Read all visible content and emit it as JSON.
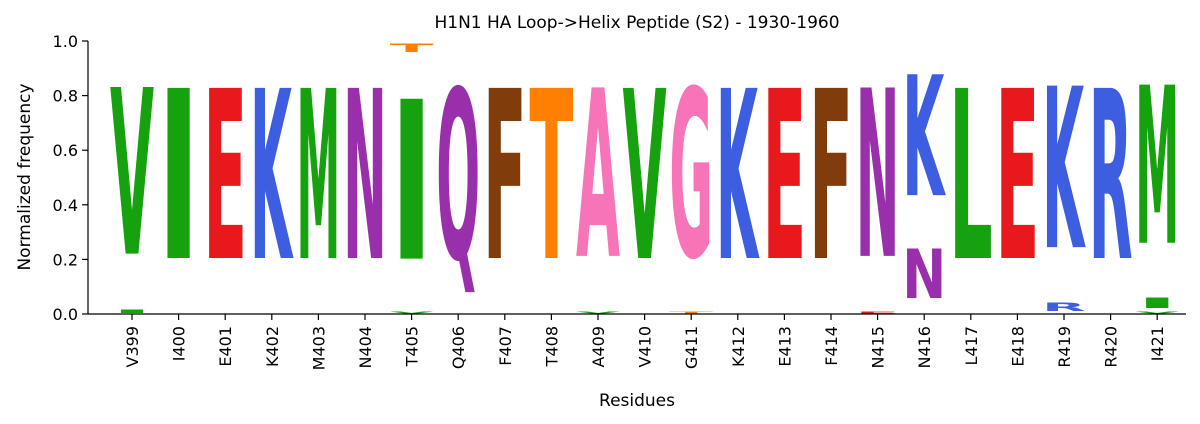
{
  "chart_data": {
    "type": "sequence-logo",
    "title": "H1N1 HA Loop->Helix Peptide (S2) - 1930-1960",
    "xlabel": "Residues",
    "ylabel": "Normalized frequency",
    "ylim": [
      0,
      1.0
    ],
    "yticks": [
      "0.0",
      "0.2",
      "0.4",
      "0.6",
      "0.8",
      "1.0"
    ],
    "ytick_values": [
      0,
      0.2,
      0.4,
      0.6,
      0.8,
      1.0
    ],
    "colors": {
      "V": "#16a10f",
      "I": "#16a10f",
      "L": "#16a10f",
      "M": "#16a10f",
      "E": "#e8191c",
      "K": "#3d5ee0",
      "R": "#3d5ee0",
      "N": "#9a2fac",
      "Q": "#9a2fac",
      "T": "#ff8000",
      "F": "#813c0b",
      "A": "#f774b8",
      "G": "#f774b8"
    },
    "positions": [
      {
        "label": "V399",
        "stack": [
          {
            "letter": "I",
            "freq": 0.02
          },
          {
            "letter": "V",
            "freq": 0.98
          }
        ]
      },
      {
        "label": "I400",
        "stack": [
          {
            "letter": "I",
            "freq": 1.0
          }
        ]
      },
      {
        "label": "E401",
        "stack": [
          {
            "letter": "E",
            "freq": 1.0
          }
        ]
      },
      {
        "label": "K402",
        "stack": [
          {
            "letter": "K",
            "freq": 1.0
          }
        ]
      },
      {
        "label": "M403",
        "stack": [
          {
            "letter": "M",
            "freq": 1.0
          }
        ]
      },
      {
        "label": "N404",
        "stack": [
          {
            "letter": "N",
            "freq": 1.0
          }
        ]
      },
      {
        "label": "T405",
        "stack": [
          {
            "letter": "V",
            "freq": 0.01
          },
          {
            "letter": "I",
            "freq": 0.94
          },
          {
            "letter": "T",
            "freq": 0.05
          }
        ]
      },
      {
        "label": "Q406",
        "stack": [
          {
            "letter": "Q",
            "freq": 1.0
          }
        ]
      },
      {
        "label": "F407",
        "stack": [
          {
            "letter": "F",
            "freq": 1.0
          }
        ]
      },
      {
        "label": "T408",
        "stack": [
          {
            "letter": "T",
            "freq": 1.0
          }
        ]
      },
      {
        "label": "A409",
        "stack": [
          {
            "letter": "V",
            "freq": 0.01
          },
          {
            "letter": "A",
            "freq": 0.99
          }
        ]
      },
      {
        "label": "V410",
        "stack": [
          {
            "letter": "V",
            "freq": 1.0
          }
        ]
      },
      {
        "label": "G411",
        "stack": [
          {
            "letter": "T",
            "freq": 0.01
          },
          {
            "letter": "G",
            "freq": 0.99
          }
        ]
      },
      {
        "label": "K412",
        "stack": [
          {
            "letter": "K",
            "freq": 1.0
          }
        ]
      },
      {
        "label": "E413",
        "stack": [
          {
            "letter": "E",
            "freq": 1.0
          }
        ]
      },
      {
        "label": "F414",
        "stack": [
          {
            "letter": "F",
            "freq": 1.0
          }
        ]
      },
      {
        "label": "N415",
        "stack": [
          {
            "letter": "E",
            "freq": 0.01
          },
          {
            "letter": "N",
            "freq": 0.99
          }
        ]
      },
      {
        "label": "N416",
        "stack": [
          {
            "letter": "N",
            "freq": 0.29
          },
          {
            "letter": "K",
            "freq": 0.71
          }
        ]
      },
      {
        "label": "L417",
        "stack": [
          {
            "letter": "L",
            "freq": 1.0
          }
        ]
      },
      {
        "label": "E418",
        "stack": [
          {
            "letter": "E",
            "freq": 1.0
          }
        ]
      },
      {
        "label": "R419",
        "stack": [
          {
            "letter": "R",
            "freq": 0.05
          },
          {
            "letter": "K",
            "freq": 0.95
          }
        ]
      },
      {
        "label": "R420",
        "stack": [
          {
            "letter": "R",
            "freq": 1.0
          }
        ]
      },
      {
        "label": "I421",
        "stack": [
          {
            "letter": "V",
            "freq": 0.01
          },
          {
            "letter": "I",
            "freq": 0.06
          },
          {
            "letter": "M",
            "freq": 0.93
          }
        ]
      }
    ]
  }
}
